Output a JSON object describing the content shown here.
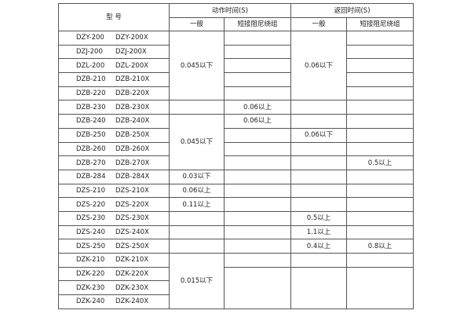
{
  "header": {
    "model": "型  号",
    "action_time": "动作时间(S)",
    "return_time": "返回时间(S)",
    "general": "一般",
    "short_damp": "短接阻尼绕组"
  },
  "rows": [
    {
      "a": "DZY-200",
      "b": "DZY-200X"
    },
    {
      "a": "DZJ-200",
      "b": "DZJ-200X"
    },
    {
      "a": "DZL-200",
      "b": "DZL-200X"
    },
    {
      "a": "DZB-210",
      "b": "DZB-210X"
    },
    {
      "a": "DZB-220",
      "b": "DZB-220X"
    },
    {
      "a": "DZB-230",
      "b": "DZB-230X"
    },
    {
      "a": "DZB-240",
      "b": "DZB-240X"
    },
    {
      "a": "DZB-250",
      "b": "DZB-250X"
    },
    {
      "a": "DZB-260",
      "b": "DZB-260X"
    },
    {
      "a": "DZB-270",
      "b": "DZB-270X"
    },
    {
      "a": "DZB-284",
      "b": "DZB-284X"
    },
    {
      "a": "DZS-210",
      "b": "DZS-210X"
    },
    {
      "a": "DZS-220",
      "b": "DZS-220X"
    },
    {
      "a": "DZS-230",
      "b": "DZS-230X"
    },
    {
      "a": "DZS-240",
      "b": "DZS-240X"
    },
    {
      "a": "DZS-250",
      "b": "DZS-250X"
    },
    {
      "a": "DZK-210",
      "b": "DZK-210X"
    },
    {
      "a": "DZK-220",
      "b": "DZK-220X"
    },
    {
      "a": "DZK-230",
      "b": "DZK-230X"
    },
    {
      "a": "DZK-240",
      "b": "DZK-240X"
    }
  ],
  "cells": [
    {
      "row": 0,
      "col": 1,
      "rowspan": 5,
      "text": "0.045以下"
    },
    {
      "row": 0,
      "col": 3,
      "rowspan": 5,
      "text": "0.06以下"
    },
    {
      "row": 5,
      "col": 1,
      "rowspan": 1,
      "text": ""
    },
    {
      "row": 5,
      "col": 2,
      "rowspan": 1,
      "text": "0.06以上"
    },
    {
      "row": 5,
      "col": 3,
      "rowspan": 1,
      "text": ""
    },
    {
      "row": 6,
      "col": 1,
      "rowspan": 4,
      "text": "0.045以下"
    },
    {
      "row": 6,
      "col": 2,
      "rowspan": 1,
      "text": "0.06以上"
    },
    {
      "row": 7,
      "col": 3,
      "rowspan": 1,
      "text": "0.06以下"
    },
    {
      "row": 9,
      "col": 4,
      "rowspan": 1,
      "text": "0.5以上"
    },
    {
      "row": 10,
      "col": 1,
      "rowspan": 1,
      "text": "0.03以下"
    },
    {
      "row": 11,
      "col": 1,
      "rowspan": 1,
      "text": "0.06以上"
    },
    {
      "row": 12,
      "col": 1,
      "rowspan": 1,
      "text": "0.11以上"
    },
    {
      "row": 13,
      "col": 3,
      "rowspan": 1,
      "text": "0.5以上"
    },
    {
      "row": 14,
      "col": 3,
      "rowspan": 1,
      "text": "1.1以上"
    },
    {
      "row": 15,
      "col": 3,
      "rowspan": 1,
      "text": "0.4以上"
    },
    {
      "row": 15,
      "col": 4,
      "rowspan": 1,
      "text": "0.8以上"
    },
    {
      "row": 16,
      "col": 1,
      "rowspan": 4,
      "text": "0.015以下"
    },
    {
      "row": 17,
      "col": 2,
      "rowspan": 3,
      "text": ""
    },
    {
      "row": 17,
      "col": 3,
      "rowspan": 3,
      "text": ""
    },
    {
      "row": 17,
      "col": 4,
      "rowspan": 3,
      "text": ""
    }
  ]
}
